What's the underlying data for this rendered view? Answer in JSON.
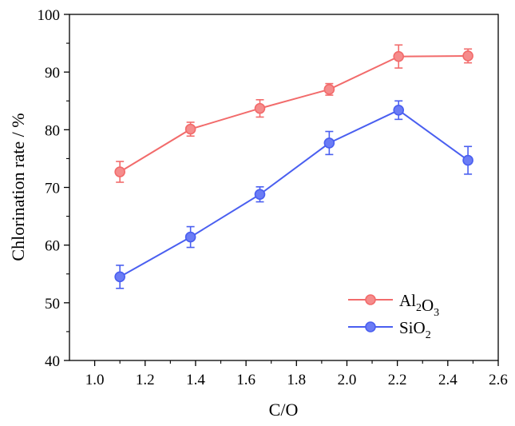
{
  "chart_data": {
    "type": "line",
    "title": "",
    "xlabel": "C/O",
    "ylabel": "Chlorination rate / %",
    "xlim": [
      0.9,
      2.6
    ],
    "ylim": [
      40,
      100
    ],
    "x_ticks": [
      "1.0",
      "1.2",
      "1.4",
      "1.6",
      "1.8",
      "2.0",
      "2.2",
      "2.4",
      "2.6"
    ],
    "y_ticks": [
      "40",
      "50",
      "60",
      "70",
      "80",
      "90",
      "100"
    ],
    "legend_position": "bottom-right",
    "series": [
      {
        "name": "Al2O3",
        "label_main": [
          "Al",
          "O"
        ],
        "label_sub": [
          "2",
          "3"
        ],
        "color": "#f26b6b",
        "marker_fill": "#f58c8c",
        "x": [
          1.1,
          1.38,
          1.655,
          1.93,
          2.205,
          2.48
        ],
        "values": [
          72.7,
          80.1,
          83.7,
          87.0,
          92.7,
          92.8
        ],
        "errors": [
          1.8,
          1.2,
          1.5,
          1.0,
          2.0,
          1.2
        ]
      },
      {
        "name": "SiO2",
        "label_main": [
          "SiO"
        ],
        "label_sub": [
          "2"
        ],
        "color": "#4a5ff0",
        "marker_fill": "#6b7cf5",
        "x": [
          1.1,
          1.38,
          1.655,
          1.93,
          2.205,
          2.48
        ],
        "values": [
          54.5,
          61.4,
          68.8,
          77.7,
          83.4,
          74.7
        ],
        "errors": [
          2.0,
          1.8,
          1.3,
          2.0,
          1.6,
          2.4
        ]
      }
    ]
  }
}
